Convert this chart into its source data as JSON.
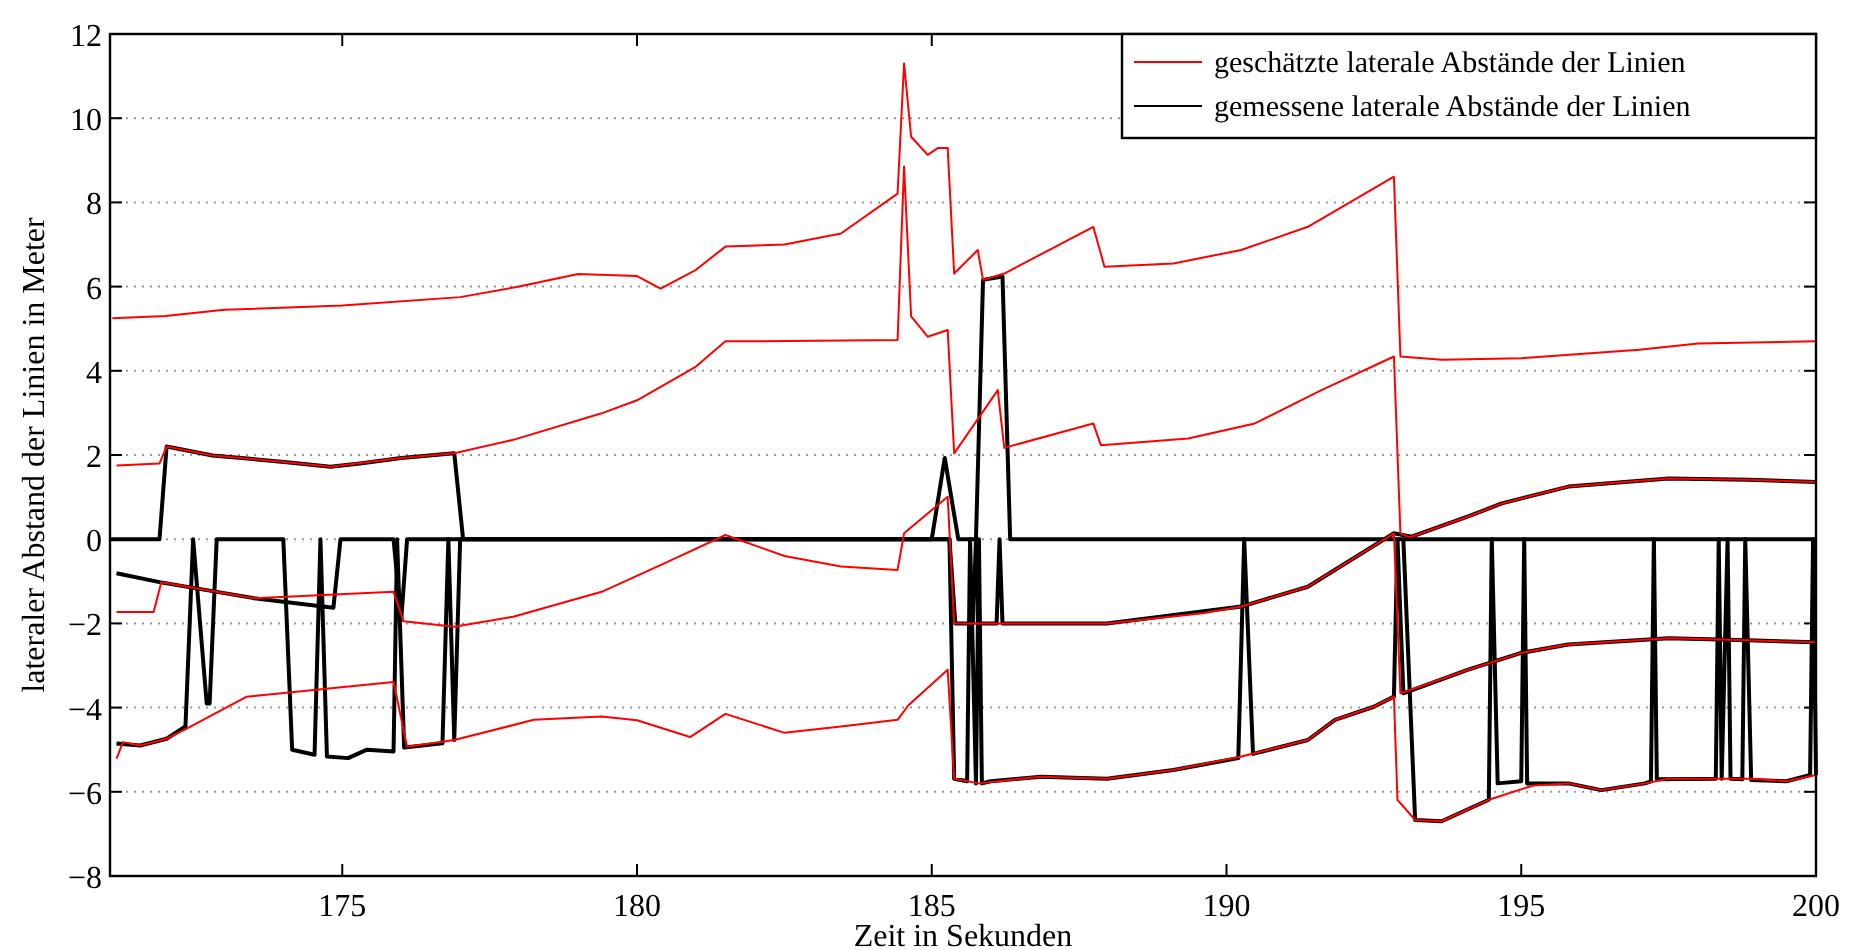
{
  "chart_data": {
    "type": "line",
    "xlabel": "Zeit in Sekunden",
    "ylabel": "lateraler Abstand der Linien in Meter",
    "xlim": [
      171.06,
      200
    ],
    "ylim": [
      -8,
      12
    ],
    "xticks": [
      175,
      180,
      185,
      190,
      195,
      200
    ],
    "yticks": [
      -8,
      -6,
      -4,
      -2,
      0,
      2,
      4,
      6,
      8,
      10,
      12
    ],
    "grid": "y",
    "legend": "top right",
    "series": [
      {
        "name": "geschätzte laterale Abstände der Linien",
        "color": "#ff0000",
        "x": [
          171.1,
          172,
          173,
          175,
          177,
          178,
          179,
          180,
          180.4,
          181,
          181.5,
          182.5,
          183.46,
          184.42,
          184.53,
          184.65,
          184.93,
          185.1,
          185.27,
          185.38,
          185.78,
          185.87,
          186.23,
          187.74,
          187.93,
          189.1,
          190.25,
          191.38,
          192.84,
          192.95,
          193.65,
          195,
          197,
          198,
          200
        ],
        "values": [
          5.25,
          5.3,
          5.45,
          5.55,
          5.75,
          6.0,
          6.3,
          6.25,
          5.95,
          6.4,
          6.95,
          7.0,
          7.26,
          8.21,
          11.3,
          9.56,
          9.13,
          9.29,
          9.29,
          6.31,
          6.87,
          6.16,
          6.31,
          7.42,
          6.47,
          6.55,
          6.87,
          7.42,
          8.61,
          4.34,
          4.26,
          4.3,
          4.5,
          4.65,
          4.7
        ]
      },
      {
        "color": "#ff0000",
        "x": [
          171.17,
          171.9,
          172.02,
          172.8,
          174.06,
          174.8,
          176.0,
          176.9,
          177.9,
          179.4,
          180,
          181,
          181.5,
          182,
          184.42,
          184.53,
          184.65,
          184.93,
          185.27,
          185.38,
          186.12,
          186.23,
          187.74,
          187.87,
          189.35,
          190.48,
          191.61,
          192.84,
          192.95,
          193.08,
          193.14,
          194.1,
          194.67,
          195.8,
          197.5,
          198.86,
          200
        ],
        "values": [
          1.75,
          1.8,
          2.2,
          1.99,
          1.83,
          1.72,
          1.93,
          2.04,
          2.36,
          2.99,
          3.3,
          4.1,
          4.7,
          4.7,
          4.73,
          8.85,
          5.29,
          4.81,
          4.97,
          2.04,
          3.54,
          2.17,
          2.75,
          2.23,
          2.39,
          2.75,
          3.54,
          4.34,
          0.14,
          0.06,
          0.06,
          0.54,
          0.85,
          1.25,
          1.44,
          1.41,
          1.36
        ]
      },
      {
        "color": "#ff0000",
        "x": [
          171.17,
          171.8,
          171.93,
          173.5,
          175.87,
          176.04,
          176.9,
          177.9,
          179.4,
          180.5,
          181.5,
          182.5,
          183.46,
          184.42,
          184.53,
          184.93,
          185.27,
          185.38,
          187.97,
          189.6,
          190.25,
          191.38,
          192.84,
          192.95,
          194.1,
          195,
          195.8,
          197.5,
          198.86,
          200
        ],
        "values": [
          -1.73,
          -1.73,
          -1.02,
          -1.4,
          -1.25,
          -1.95,
          -2.08,
          -1.84,
          -1.25,
          -0.55,
          0.1,
          -0.4,
          -0.65,
          -0.73,
          0.14,
          0.61,
          1.01,
          -2.0,
          -2.0,
          -1.76,
          -1.6,
          -1.13,
          0.14,
          -3.66,
          -3.1,
          -2.7,
          -2.5,
          -2.35,
          -2.4,
          -2.45
        ]
      },
      {
        "color": "#ff0000",
        "x": [
          171.17,
          171.28,
          171.57,
          172.02,
          172.36,
          173.38,
          175.87,
          176.1,
          176.9,
          178.25,
          179.4,
          180,
          180.9,
          181.5,
          182.5,
          183.46,
          184.42,
          184.6,
          185.27,
          185.38,
          185.8,
          186.85,
          187.97,
          189.1,
          190.25,
          191.38,
          191.84,
          192.5,
          192.84,
          192.9,
          193.2,
          193.65,
          194.45,
          195.2,
          195.8,
          196.36,
          197.1,
          197.5,
          198.9,
          199.5,
          200
        ],
        "values": [
          -5.21,
          -4.82,
          -4.9,
          -4.74,
          -4.5,
          -3.74,
          -3.39,
          -4.93,
          -4.77,
          -4.29,
          -4.21,
          -4.3,
          -4.7,
          -4.15,
          -4.6,
          -4.45,
          -4.29,
          -3.95,
          -3.1,
          -5.69,
          -5.8,
          -5.64,
          -5.69,
          -5.48,
          -5.16,
          -4.77,
          -4.29,
          -3.98,
          -3.74,
          -6.19,
          -6.67,
          -6.7,
          -6.19,
          -5.85,
          -5.8,
          -5.96,
          -5.8,
          -5.69,
          -5.69,
          -5.75,
          -5.6
        ]
      },
      {
        "name": "gemessene laterale Abstände der Linien",
        "color": "#000000",
        "x": [
          171.06,
          171.9,
          172.02,
          172.8,
          174.06,
          174.8,
          175.3,
          176,
          176.9,
          177.05,
          185.0,
          185.22,
          185.45,
          185.75,
          185.87,
          186.2,
          186.33,
          200
        ],
        "values": [
          0,
          0,
          2.2,
          1.99,
          1.83,
          1.72,
          1.8,
          1.93,
          2.04,
          0,
          0,
          1.93,
          0,
          0,
          6.16,
          6.24,
          0,
          0
        ]
      },
      {
        "color": "#000000",
        "x": [
          171.17,
          171.9,
          173.5,
          174.85,
          174.97,
          175.87,
          176.0,
          176.1,
          185.3,
          185.4,
          185.7,
          185.75,
          185.8,
          186.1,
          186.15,
          186.2,
          187.97,
          190.25,
          191.38,
          192.84,
          193.14,
          194.1,
          194.67,
          195.8,
          197.5,
          198.86,
          200
        ],
        "values": [
          -0.81,
          -1.02,
          -1.4,
          -1.63,
          0,
          0,
          -1.92,
          0,
          0,
          -2.0,
          -2.0,
          0,
          -2.0,
          -2.0,
          0,
          -2.0,
          -2.0,
          -1.6,
          -1.13,
          0.14,
          0.06,
          0.54,
          0.85,
          1.25,
          1.44,
          1.41,
          1.36
        ]
      },
      {
        "color": "#000000",
        "x": [
          171.17,
          171.57,
          172.02,
          172.34,
          172.47,
          172.7,
          172.75,
          172.87,
          174.0,
          174.15,
          174.53,
          174.63,
          174.74,
          175.1,
          175.42,
          175.87,
          175.93,
          176.05,
          176.7,
          176.8,
          176.9,
          177.0,
          185.3,
          185.38,
          185.6,
          185.65,
          185.75,
          185.8,
          185.85,
          186.0,
          186.85,
          187.97,
          189.1,
          190.2,
          190.3,
          190.45,
          191.38,
          191.84,
          192.5,
          192.84,
          192.9,
          193.0,
          194.1,
          195.0,
          195.8,
          197.5,
          198.86,
          200
        ],
        "values": [
          -4.85,
          -4.9,
          -4.74,
          -4.45,
          0,
          -3.9,
          -3.9,
          0,
          0,
          -5.0,
          -5.12,
          0,
          -5.16,
          -5.2,
          -5.0,
          -5.04,
          0,
          -4.95,
          -4.85,
          0,
          -4.77,
          0,
          0,
          -5.69,
          -5.75,
          0,
          -5.8,
          0,
          -5.8,
          -5.75,
          -5.64,
          -5.69,
          -5.48,
          -5.2,
          0,
          -5.1,
          -4.77,
          -4.29,
          -3.98,
          -3.74,
          0,
          -3.66,
          -3.1,
          -2.7,
          -2.5,
          -2.35,
          -2.4,
          -2.45
        ]
      },
      {
        "color": "#000000",
        "x": [
          193.0,
          193.2,
          193.65,
          194.45,
          194.5,
          194.6,
          195.0,
          195.05,
          195.1,
          195.8,
          196.36,
          197.1,
          197.2,
          197.25,
          197.3,
          198.3,
          198.35,
          198.4,
          198.5,
          198.55,
          198.75,
          198.8,
          198.9,
          199.5,
          199.9,
          199.95,
          200
        ],
        "values": [
          0,
          -6.67,
          -6.7,
          -6.19,
          0,
          -5.8,
          -5.75,
          0,
          -5.8,
          -5.8,
          -5.96,
          -5.8,
          -5.75,
          0,
          -5.7,
          -5.69,
          0,
          -5.69,
          0,
          -5.69,
          -5.7,
          0,
          -5.72,
          -5.75,
          -5.6,
          0,
          -5.6
        ]
      }
    ]
  }
}
